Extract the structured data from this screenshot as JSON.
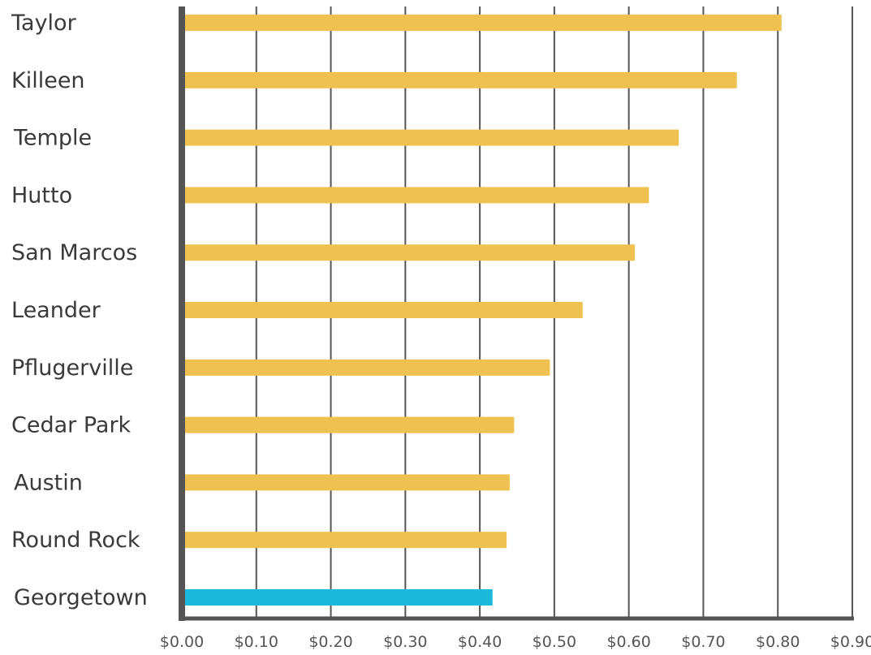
{
  "chart_data": {
    "type": "bar",
    "orientation": "horizontal",
    "title": "",
    "xlabel": "",
    "ylabel": "",
    "categories": [
      "Taylor",
      "Killeen",
      "Temple",
      "Hutto",
      "San Marcos",
      "Leander",
      "Pflugerville",
      "Cedar Park",
      "Austin",
      "Round Rock",
      "Georgetown"
    ],
    "values": [
      0.805,
      0.745,
      0.667,
      0.627,
      0.608,
      0.538,
      0.494,
      0.446,
      0.44,
      0.436,
      0.417
    ],
    "bar_colors": [
      "#efc150",
      "#efc150",
      "#efc150",
      "#efc150",
      "#efc150",
      "#efc150",
      "#efc150",
      "#efc150",
      "#efc150",
      "#efc150",
      "#1bb9dc"
    ],
    "xlim": [
      0,
      0.9
    ],
    "x_ticks": [
      0,
      0.1,
      0.2,
      0.3,
      0.4,
      0.5,
      0.6,
      0.7,
      0.8,
      0.9
    ],
    "x_tick_labels": [
      "$0.00",
      "$0.10",
      "$0.20",
      "$0.30",
      "$0.40",
      "$0.50",
      "$0.60",
      "$0.70",
      "$0.80",
      "$0.90"
    ],
    "grid": true,
    "legend": "none",
    "colors": {
      "default_bar": "#efc150",
      "highlight_bar": "#1bb9dc",
      "gridline": "#555555",
      "axis": "#555555"
    }
  }
}
